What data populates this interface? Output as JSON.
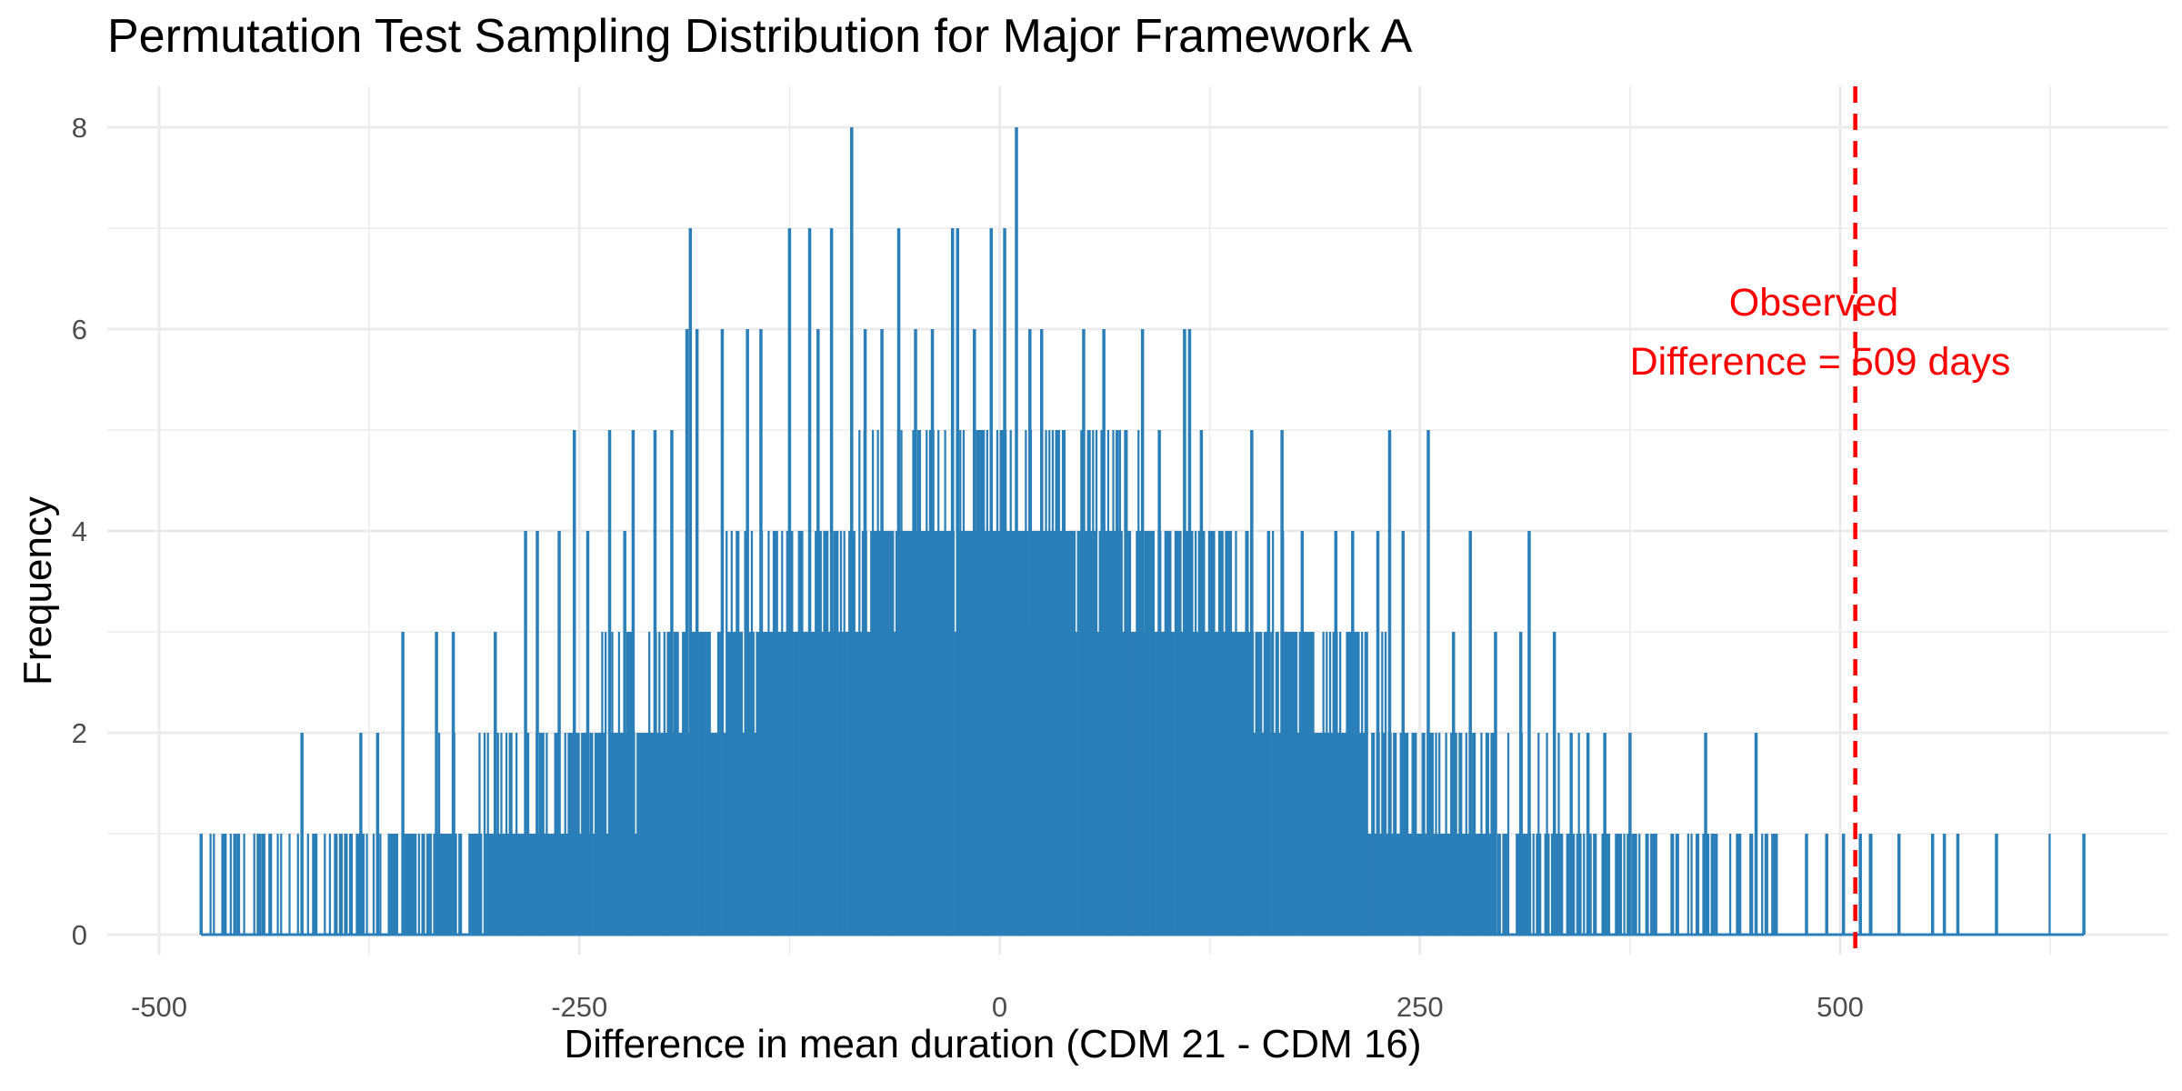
{
  "chart_data": {
    "type": "bar",
    "title": "Permutation Test Sampling Distribution for Major Framework A",
    "xlabel": "Difference in mean duration (CDM 21 - CDM 16)",
    "ylabel": "Frequency",
    "xlim": [
      -522,
      660
    ],
    "ylim": [
      0,
      8
    ],
    "x_ticks": [
      -500,
      -250,
      0,
      250,
      500
    ],
    "y_ticks": [
      0,
      2,
      4,
      6,
      8
    ],
    "grid": true,
    "bar_color": "#2b7fb8",
    "observed": {
      "value": 509,
      "line_color": "#ff0000",
      "label_line1": "Observed",
      "label_line2": "Difference = 509  days"
    },
    "distribution": {
      "range": [
        -475,
        645
      ],
      "bin_width": 1,
      "sd": 185,
      "peak": 4.3
    },
    "spikes": [
      {
        "x": -475,
        "y": 1
      },
      {
        "x": -455,
        "y": 1
      },
      {
        "x": -440,
        "y": 1
      },
      {
        "x": -415,
        "y": 2
      },
      {
        "x": -380,
        "y": 2
      },
      {
        "x": -370,
        "y": 2
      },
      {
        "x": -355,
        "y": 3
      },
      {
        "x": -335,
        "y": 3
      },
      {
        "x": -325,
        "y": 3
      },
      {
        "x": -300,
        "y": 3
      },
      {
        "x": -282,
        "y": 4
      },
      {
        "x": -275,
        "y": 4
      },
      {
        "x": -262,
        "y": 4
      },
      {
        "x": -253,
        "y": 5
      },
      {
        "x": -245,
        "y": 4
      },
      {
        "x": -232,
        "y": 5
      },
      {
        "x": -223,
        "y": 4
      },
      {
        "x": -218,
        "y": 5
      },
      {
        "x": -205,
        "y": 5
      },
      {
        "x": -195,
        "y": 5
      },
      {
        "x": -186,
        "y": 6
      },
      {
        "x": -184,
        "y": 7
      },
      {
        "x": -180,
        "y": 6
      },
      {
        "x": -165,
        "y": 6
      },
      {
        "x": -150,
        "y": 6
      },
      {
        "x": -142,
        "y": 6
      },
      {
        "x": -125,
        "y": 7
      },
      {
        "x": -113,
        "y": 7
      },
      {
        "x": -108,
        "y": 6
      },
      {
        "x": -100,
        "y": 7
      },
      {
        "x": -88,
        "y": 8
      },
      {
        "x": -80,
        "y": 6
      },
      {
        "x": -70,
        "y": 6
      },
      {
        "x": -60,
        "y": 7
      },
      {
        "x": -50,
        "y": 6
      },
      {
        "x": -40,
        "y": 6
      },
      {
        "x": -28,
        "y": 7
      },
      {
        "x": -25,
        "y": 7
      },
      {
        "x": -15,
        "y": 6
      },
      {
        "x": -5,
        "y": 7
      },
      {
        "x": 3,
        "y": 7
      },
      {
        "x": 10,
        "y": 8
      },
      {
        "x": 18,
        "y": 6
      },
      {
        "x": 25,
        "y": 6
      },
      {
        "x": 35,
        "y": 5
      },
      {
        "x": 50,
        "y": 6
      },
      {
        "x": 62,
        "y": 6
      },
      {
        "x": 70,
        "y": 5
      },
      {
        "x": 85,
        "y": 6
      },
      {
        "x": 95,
        "y": 5
      },
      {
        "x": 110,
        "y": 6
      },
      {
        "x": 113,
        "y": 6
      },
      {
        "x": 120,
        "y": 5
      },
      {
        "x": 135,
        "y": 4
      },
      {
        "x": 150,
        "y": 5
      },
      {
        "x": 160,
        "y": 4
      },
      {
        "x": 168,
        "y": 5
      },
      {
        "x": 180,
        "y": 4
      },
      {
        "x": 200,
        "y": 4
      },
      {
        "x": 210,
        "y": 4
      },
      {
        "x": 225,
        "y": 4
      },
      {
        "x": 232,
        "y": 5
      },
      {
        "x": 240,
        "y": 4
      },
      {
        "x": 255,
        "y": 5
      },
      {
        "x": 270,
        "y": 3
      },
      {
        "x": 280,
        "y": 4
      },
      {
        "x": 295,
        "y": 3
      },
      {
        "x": 310,
        "y": 3
      },
      {
        "x": 315,
        "y": 4
      },
      {
        "x": 330,
        "y": 3
      },
      {
        "x": 340,
        "y": 2
      },
      {
        "x": 350,
        "y": 2
      },
      {
        "x": 360,
        "y": 2
      },
      {
        "x": 375,
        "y": 2
      },
      {
        "x": 385,
        "y": 1
      },
      {
        "x": 400,
        "y": 1
      },
      {
        "x": 420,
        "y": 2
      },
      {
        "x": 440,
        "y": 1
      },
      {
        "x": 450,
        "y": 2
      },
      {
        "x": 462,
        "y": 1
      },
      {
        "x": 480,
        "y": 1
      },
      {
        "x": 492,
        "y": 1
      },
      {
        "x": 502,
        "y": 1
      },
      {
        "x": 512,
        "y": 1
      },
      {
        "x": 518,
        "y": 1
      },
      {
        "x": 535,
        "y": 1
      },
      {
        "x": 555,
        "y": 1
      },
      {
        "x": 562,
        "y": 1
      },
      {
        "x": 570,
        "y": 1
      },
      {
        "x": 593,
        "y": 1
      },
      {
        "x": 645,
        "y": 1
      }
    ]
  }
}
